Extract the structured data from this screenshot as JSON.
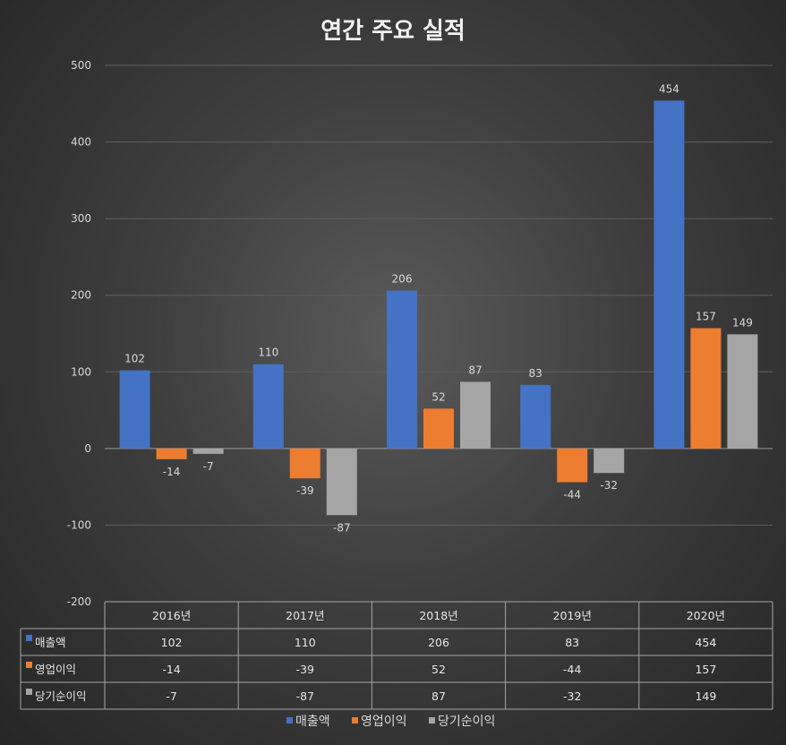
{
  "chart_data": {
    "type": "bar",
    "title": "연간 주요 실적",
    "categories": [
      "2016년",
      "2017년",
      "2018년",
      "2019년",
      "2020년"
    ],
    "series": [
      {
        "name": "매출액",
        "color": "#4472c4",
        "values": [
          102,
          110,
          206,
          83,
          454
        ]
      },
      {
        "name": "영업이익",
        "color": "#ed7d31",
        "values": [
          -14,
          -39,
          52,
          -44,
          157
        ]
      },
      {
        "name": "당기순이익",
        "color": "#a5a5a5",
        "values": [
          -7,
          -87,
          87,
          -32,
          149
        ]
      }
    ],
    "ylim": [
      -200,
      500
    ],
    "yticks": [
      500,
      400,
      300,
      200,
      100,
      0,
      -100,
      -200
    ],
    "data_table": true,
    "legend": "bottom",
    "grid": true
  }
}
